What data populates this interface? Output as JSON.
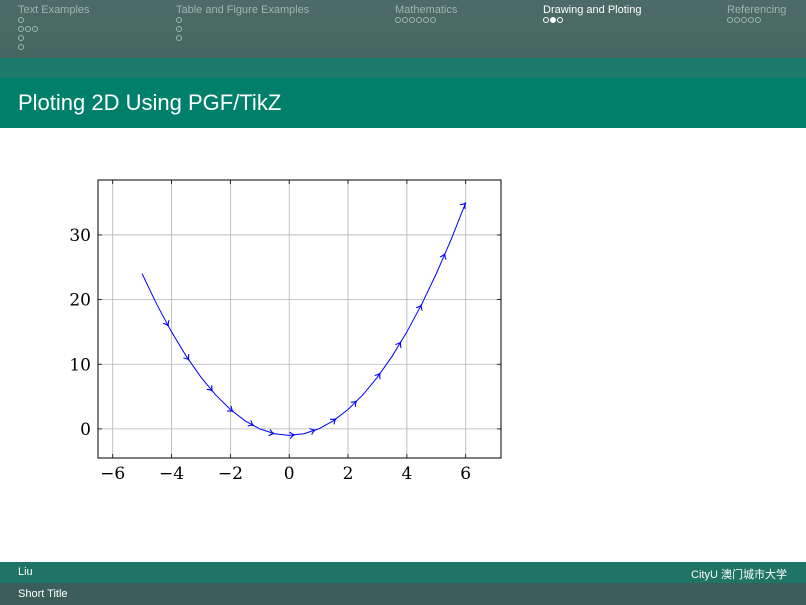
{
  "nav": {
    "sections": [
      {
        "label": "Text Examples",
        "active": false,
        "dot_rows": [
          [
            {
              "filled": false
            }
          ],
          [
            {
              "filled": false
            },
            {
              "filled": false
            },
            {
              "filled": false
            }
          ],
          [
            {
              "filled": false
            }
          ],
          [
            {
              "filled": false
            }
          ]
        ]
      },
      {
        "label": "Table and Figure Examples",
        "active": false,
        "dot_rows": [
          [
            {
              "filled": false
            }
          ],
          [
            {
              "filled": false
            }
          ],
          [
            {
              "filled": false
            }
          ]
        ]
      },
      {
        "label": "Mathematics",
        "active": false,
        "dot_rows": [
          [
            {
              "filled": false
            },
            {
              "filled": false
            },
            {
              "filled": false
            },
            {
              "filled": false
            },
            {
              "filled": false
            },
            {
              "filled": false
            }
          ]
        ]
      },
      {
        "label": "Drawing and Ploting",
        "active": true,
        "dot_rows": [
          [
            {
              "filled": false
            },
            {
              "filled": true
            },
            {
              "filled": false
            }
          ]
        ]
      },
      {
        "label": "Referencing",
        "active": false,
        "dot_rows": [
          [
            {
              "filled": false
            },
            {
              "filled": false
            },
            {
              "filled": false
            },
            {
              "filled": false
            },
            {
              "filled": false
            }
          ]
        ]
      }
    ]
  },
  "frame": {
    "title": "Ploting 2D Using PGF/TikZ"
  },
  "footer": {
    "author": "Liu",
    "institute": "CityU 澳门城市大学",
    "short_title": "Short Title"
  },
  "colors": {
    "header": "#4d6b66",
    "frametitle_bg": "#00806a",
    "footer_top": "#1f7465",
    "footer_bottom": "#3b5f58",
    "plot_line": "#0000ff",
    "grid": "#b3b3b3"
  },
  "chart_data": {
    "type": "line",
    "title": "",
    "xlabel": "",
    "ylabel": "",
    "xlim": [
      -6.5,
      7.2
    ],
    "ylim": [
      -4.5,
      38.5
    ],
    "grid": true,
    "x_ticks": [
      -6,
      -4,
      -2,
      0,
      2,
      4,
      6
    ],
    "x_tick_labels": [
      "−6",
      "−4",
      "−2",
      "0",
      "2",
      "4",
      "6"
    ],
    "y_ticks": [
      0,
      10,
      20,
      30
    ],
    "y_tick_labels": [
      "0",
      "10",
      "20",
      "30"
    ],
    "series": [
      {
        "color": "#0000ff",
        "x": [
          -5,
          -4.5,
          -4,
          -3.5,
          -3,
          -2.5,
          -2,
          -1.5,
          -1,
          -0.5,
          0,
          0.5,
          1,
          1.5,
          2,
          2.5,
          3,
          3.5,
          4,
          4.5,
          5,
          5.5,
          6
        ],
        "y": [
          24,
          19.25,
          15,
          11.25,
          8,
          5.25,
          3,
          1.25,
          0,
          -0.75,
          -1,
          -0.75,
          0,
          1.25,
          3,
          5.25,
          8,
          11.25,
          15,
          19.25,
          24,
          29.25,
          35
        ],
        "arrow_x": [
          -4.1,
          -3.4,
          -2.6,
          -1.9,
          -1.2,
          -0.5,
          0.2,
          0.9,
          1.6,
          2.3,
          3.1,
          3.8,
          4.5,
          5.3,
          6.0
        ]
      }
    ]
  }
}
